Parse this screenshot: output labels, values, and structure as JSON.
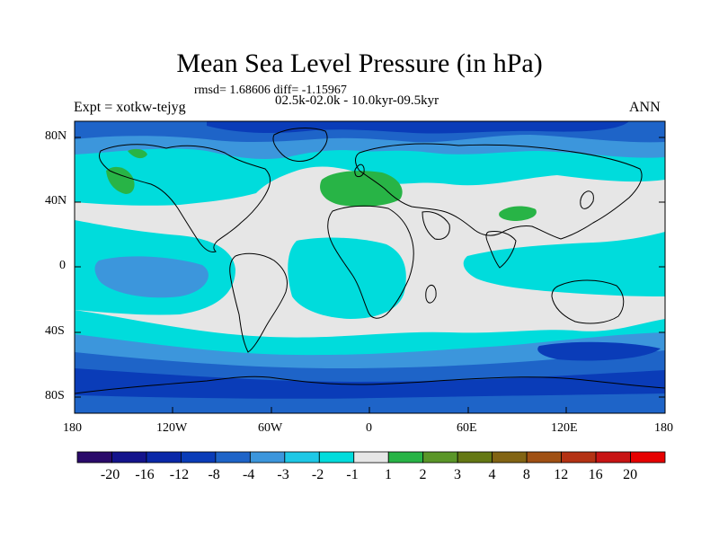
{
  "title": "Mean Sea Level Pressure (in hPa)",
  "stats": "rmsd= 1.68606 diff= -1.15967",
  "period": "02.5k-02.0k - 10.0kyr-09.5kyr",
  "expt": "Expt = xotkw-tejyg",
  "season": "ANN",
  "lat_labels": [
    "80N",
    "40N",
    "0",
    "40S",
    "80S"
  ],
  "lon_labels": [
    "180",
    "120W",
    "60W",
    "0",
    "60E",
    "120E",
    "180"
  ],
  "colorbar": {
    "colors": [
      "#2a0a6a",
      "#14148c",
      "#0a28a8",
      "#0a3cb8",
      "#1e64c8",
      "#3c96dc",
      "#1ec8e6",
      "#00dcdc",
      "#e6e6e6",
      "#28b446",
      "#5a9628",
      "#647814",
      "#826414",
      "#a05014",
      "#b43214",
      "#c81414",
      "#e60000"
    ],
    "labels": [
      "-20",
      "-16",
      "-12",
      "-8",
      "-4",
      "-3",
      "-2",
      "-1",
      "1",
      "2",
      "3",
      "4",
      "8",
      "12",
      "16",
      "20"
    ]
  },
  "legend_colors": {
    "light_gray": "#e6e6e6",
    "cyan": "#00dcdc",
    "light_blue": "#3c96dc",
    "blue": "#1e64c8",
    "dark_blue": "#0a3cb8",
    "green": "#28b446"
  }
}
